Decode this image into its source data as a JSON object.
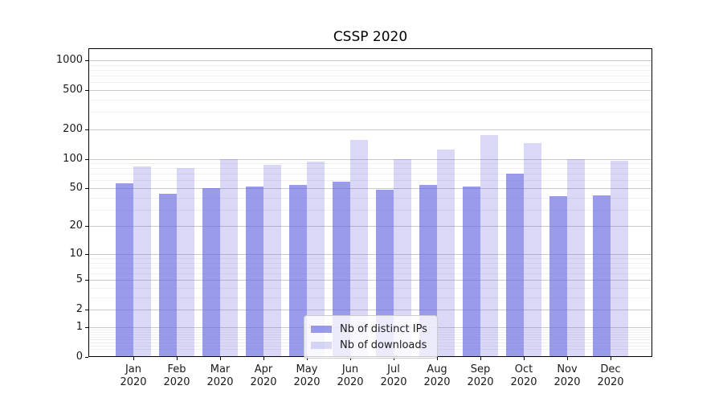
{
  "chart_data": {
    "type": "bar",
    "title": "CSSP 2020",
    "months": [
      "Jan",
      "Feb",
      "Mar",
      "Apr",
      "May",
      "Jun",
      "Jul",
      "Aug",
      "Sep",
      "Oct",
      "Nov",
      "Dec"
    ],
    "year_label": "2020",
    "categories": [
      "Jan 2020",
      "Feb 2020",
      "Mar 2020",
      "Apr 2020",
      "May 2020",
      "Jun 2020",
      "Jul 2020",
      "Aug 2020",
      "Sep 2020",
      "Oct 2020",
      "Nov 2020",
      "Dec 2020"
    ],
    "series": [
      {
        "name": "Nb of distinct IPs",
        "fill": "rgba(102,102,224,0.65)",
        "solid_hex_equivalent": "#9b9beb",
        "values": [
          56,
          44,
          50,
          52,
          54,
          58,
          48,
          54,
          52,
          70,
          41,
          42
        ]
      },
      {
        "name": "Nb of downloads",
        "fill": "rgba(102,102,224,0.25)",
        "solid_hex_equivalent": "#d9d9f7",
        "values": [
          83,
          80,
          99,
          87,
          94,
          155,
          99,
          125,
          175,
          145,
          100,
          96
        ]
      }
    ],
    "xlabel": "",
    "ylabel": "",
    "y_scale": "symlog (y ~ log(1+v))",
    "ylim": [
      0,
      1300
    ],
    "y_ticks": [
      1000,
      500,
      200,
      100,
      50,
      20,
      10,
      5,
      2,
      1,
      0
    ],
    "y_minor_ticks": [
      0.2,
      0.3,
      0.4,
      0.5,
      0.6,
      0.7,
      0.8,
      0.9,
      3,
      4,
      6,
      7,
      8,
      9,
      30,
      40,
      60,
      70,
      80,
      90,
      300,
      400,
      600,
      700,
      800,
      900
    ],
    "grid": true,
    "legend_position": "inside plot, bottom center",
    "colors": {
      "bar_dark": "#9b9beb",
      "bar_light": "#d9d9f7",
      "major_grid": "#c9c9c9",
      "minor_grid": "#efefef",
      "spine": "#000000",
      "text": "#1a1a1a",
      "legend_border": "#cccccc"
    }
  }
}
